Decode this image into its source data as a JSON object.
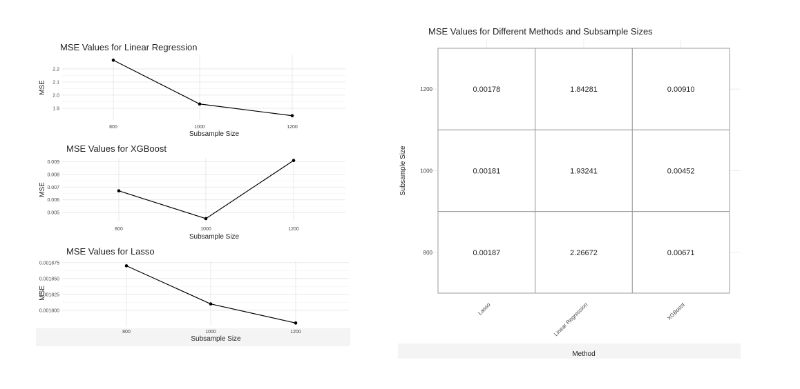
{
  "chart_data": [
    {
      "type": "line",
      "title": "MSE Values for Linear Regression",
      "xlabel": "Subsample Size",
      "ylabel": "MSE",
      "x": [
        800,
        1000,
        1200
      ],
      "series": [
        {
          "values": [
            2.26672,
            1.93241,
            1.84281
          ]
        }
      ],
      "yticks": [
        "2.2",
        "2.1",
        "2.0",
        "1.9"
      ],
      "xticks": [
        "800",
        "1000",
        "1200"
      ],
      "ylim": [
        1.81,
        2.305
      ],
      "grid": true
    },
    {
      "type": "line",
      "title": "MSE Values for XGBoost",
      "xlabel": "Subsample Size",
      "ylabel": "MSE",
      "x": [
        800,
        1000,
        1200
      ],
      "series": [
        {
          "values": [
            0.00671,
            0.00452,
            0.0091
          ]
        }
      ],
      "yticks": [
        "0.009",
        "0.008",
        "0.007",
        "0.006",
        "0.005"
      ],
      "xticks": [
        "800",
        "1000",
        "1200"
      ],
      "ylim": [
        0.0043,
        0.0093
      ],
      "grid": true
    },
    {
      "type": "line",
      "title": "MSE Values for Lasso",
      "xlabel": "Subsample Size",
      "ylabel": "MSE",
      "x": [
        800,
        1000,
        1200
      ],
      "series": [
        {
          "values": [
            0.00187,
            0.00181,
            0.00178
          ]
        }
      ],
      "yticks": [
        "0.001875",
        "0.001850",
        "0.001825",
        "0.001800"
      ],
      "xticks": [
        "800",
        "1000",
        "1200"
      ],
      "ylim": [
        0.001776,
        0.001878
      ],
      "grid": true
    },
    {
      "type": "heatmap",
      "title": "MSE Values for Different Methods and Subsample Sizes",
      "xlabel": "Method",
      "ylabel": "Subsample Size",
      "categories": [
        "Lasso",
        "Linear Regression",
        "XGBoost"
      ],
      "rows": [
        "1200",
        "1000",
        "800"
      ],
      "cells": [
        [
          "0.00178",
          "1.84281",
          "0.00910"
        ],
        [
          "0.00181",
          "1.93241",
          "0.00452"
        ],
        [
          "0.00187",
          "2.26672",
          "0.00671"
        ]
      ]
    }
  ],
  "colors": {
    "line": "#000000",
    "grid": "#e6e6e6",
    "panel_border": "#9a9a9a",
    "text": "#222222"
  }
}
